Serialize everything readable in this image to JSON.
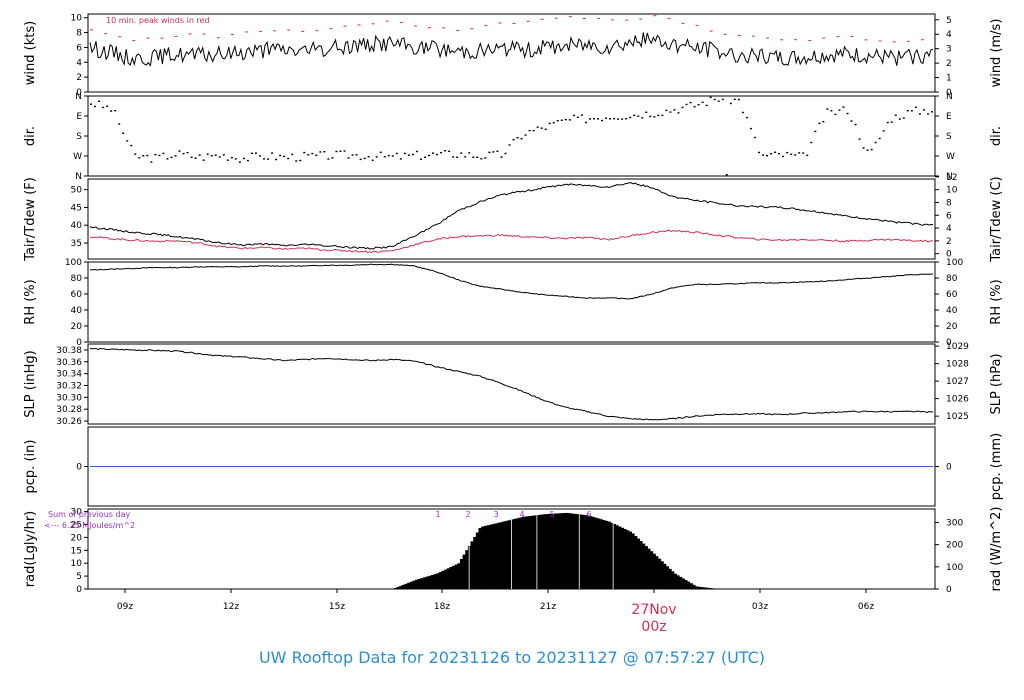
{
  "chart_data": {
    "type": "line",
    "x_ticks": [
      "09z",
      "12z",
      "15z",
      "18z",
      "21z",
      "03z",
      "06z"
    ],
    "day_label": "27Nov",
    "day_sub": "00z",
    "panels": [
      {
        "id": "wind",
        "left_label": "wind (kts)",
        "right_label": "wind (m/s)",
        "left_ticks": [
          "0",
          "2",
          "4",
          "6",
          "8",
          "10"
        ],
        "right_ticks": [
          "0",
          "1",
          "2",
          "3",
          "4",
          "5"
        ],
        "annotation": "10 min. peak winds in red",
        "series": [
          {
            "name": "",
            "color": "#000000",
            "style": "line",
            "values": [
              6.0,
              5.3,
              4.5,
              4.7,
              5.1,
              4.9,
              5.0,
              5.4,
              5.6,
              5.7,
              5.5,
              5.8,
              6.2,
              6.5,
              6.6,
              6.0,
              5.8,
              5.5,
              5.6,
              5.8,
              5.7,
              5.9,
              6.3,
              6.4,
              6.2,
              6.8,
              7.0,
              6.5,
              6.0,
              5.5,
              5.0,
              4.8,
              4.5,
              4.6,
              4.9,
              5.0,
              4.8,
              4.5,
              4.7,
              5.0
            ]
          },
          {
            "name": "",
            "color": "#d03050",
            "style": "dash",
            "values": [
              8.5,
              7.5,
              7.0,
              7.3,
              7.6,
              7.8,
              7.4,
              7.9,
              8.2,
              8.4,
              8.0,
              8.6,
              9.0,
              9.3,
              9.6,
              9.0,
              8.6,
              8.4,
              8.8,
              9.2,
              9.4,
              9.8,
              10.1,
              10.0,
              9.6,
              9.8,
              10.2,
              9.6,
              8.9,
              8.0,
              7.6,
              7.3,
              6.9,
              7.0,
              7.2,
              7.4,
              7.0,
              6.8,
              6.9,
              7.0
            ]
          }
        ],
        "ylim": [
          0,
          10.5
        ]
      },
      {
        "id": "dir",
        "left_label": "dir.",
        "right_label": "dir.",
        "left_ticks": [
          "N",
          "E",
          "S",
          "W",
          "N"
        ],
        "right_ticks": [
          "N",
          "E",
          "S",
          "W",
          "N"
        ],
        "series": [
          {
            "name": "",
            "color": "#000000",
            "style": "dots",
            "values": [
              330,
              300,
              90,
              80,
              100,
              85,
              95,
              80,
              90,
              85,
              88,
              92,
              95,
              90,
              85,
              92,
              96,
              100,
              90,
              95,
              190,
              220,
              250,
              260,
              270,
              275,
              285,
              300,
              320,
              350,
              340,
              90,
              95,
              85,
              280,
              300,
              90,
              260,
              290,
              300
            ]
          }
        ],
        "ylim": [
          0,
          360
        ]
      },
      {
        "id": "temp",
        "left_label": "Tair/Tdew (F)",
        "right_label": "Tair/Tdew (C)",
        "left_ticks": [
          "35",
          "40",
          "45",
          "50"
        ],
        "right_ticks": [
          "0",
          "2",
          "4",
          "6",
          "8",
          "10",
          "12"
        ],
        "series": [
          {
            "name": "",
            "color": "#000000",
            "style": "line",
            "values": [
              39.5,
              38.8,
              38.0,
              37.5,
              36.8,
              36.0,
              35.0,
              34.5,
              34.7,
              34.3,
              34.6,
              34.2,
              33.8,
              33.5,
              34.0,
              37.0,
              40.0,
              44.0,
              46.5,
              48.5,
              49.5,
              50.5,
              51.5,
              51.2,
              50.8,
              52.0,
              50.5,
              48.0,
              47.0,
              46.2,
              45.5,
              45.2,
              45.0,
              44.3,
              43.5,
              42.5,
              41.8,
              41.0,
              40.5,
              40.0
            ]
          },
          {
            "name": "",
            "color": "#d03050",
            "style": "line",
            "values": [
              36.8,
              36.2,
              35.8,
              35.5,
              35.6,
              35.0,
              34.0,
              33.5,
              33.7,
              33.3,
              33.5,
              33.0,
              32.8,
              32.5,
              32.8,
              34.5,
              36.0,
              36.8,
              37.0,
              37.2,
              36.8,
              36.5,
              36.3,
              36.5,
              36.0,
              37.0,
              38.0,
              38.5,
              38.0,
              37.2,
              36.5,
              36.0,
              35.8,
              36.0,
              35.8,
              35.5,
              35.8,
              36.0,
              35.7,
              35.5
            ]
          }
        ],
        "ylim": [
          30.5,
          53
        ]
      },
      {
        "id": "rh",
        "left_label": "RH (%)",
        "right_label": "RH (%)",
        "left_ticks": [
          "0",
          "20",
          "40",
          "60",
          "80",
          "100"
        ],
        "right_ticks": [
          "0",
          "20",
          "40",
          "60",
          "80",
          "100"
        ],
        "series": [
          {
            "name": "",
            "color": "#000000",
            "style": "line",
            "values": [
              90,
              91,
              92,
              93,
              93,
              94,
              94,
              94,
              95,
              95,
              95,
              96,
              96,
              97,
              97,
              95,
              88,
              78,
              70,
              66,
              62,
              59,
              57,
              55,
              55,
              54,
              60,
              68,
              72,
              72,
              73,
              74,
              74,
              75,
              76,
              78,
              80,
              82,
              84,
              85
            ]
          }
        ],
        "ylim": [
          0,
          100
        ]
      },
      {
        "id": "slp",
        "left_label": "SLP (inHg)",
        "right_label": "SLP (hPa)",
        "left_ticks": [
          "30.26",
          "30.28",
          "30.30",
          "30.32",
          "30.34",
          "30.36",
          "30.38"
        ],
        "right_ticks": [
          "1025",
          "1026",
          "1027",
          "1028",
          "1029"
        ],
        "series": [
          {
            "name": "",
            "color": "#000000",
            "style": "line",
            "values": [
              30.382,
              30.381,
              30.38,
              30.379,
              30.378,
              30.374,
              30.37,
              30.368,
              30.365,
              30.362,
              30.364,
              30.366,
              30.364,
              30.362,
              30.364,
              30.361,
              30.352,
              30.344,
              30.336,
              30.324,
              30.31,
              30.295,
              30.283,
              30.276,
              30.268,
              30.264,
              30.262,
              30.264,
              30.268,
              30.271,
              30.272,
              30.272,
              30.271,
              30.273,
              30.274,
              30.276,
              30.276,
              30.276,
              30.276,
              30.275
            ]
          }
        ],
        "ylim": [
          30.255,
          30.39
        ]
      },
      {
        "id": "pcp",
        "left_label": "pcp. (in)",
        "right_label": "pcp. (mm)",
        "left_ticks": [
          "0"
        ],
        "right_ticks": [
          "0"
        ],
        "series": [
          {
            "name": "",
            "color": "#3060c0",
            "style": "line",
            "values": [
              0,
              0
            ]
          }
        ],
        "ylim": [
          -1,
          1
        ]
      },
      {
        "id": "rad",
        "left_label": "rad(Lgly/hr)",
        "right_label": "rad (W/m^2)",
        "left_ticks": [
          "0",
          "5",
          "10",
          "15",
          "20",
          "25",
          "30"
        ],
        "right_ticks": [
          "0",
          "100",
          "200",
          "300"
        ],
        "hour_marks": [
          "1",
          "2",
          "3",
          "4",
          "5",
          "6"
        ],
        "note_line1": "Sum of previous day",
        "note_line2": "<--- 6.25 MJoules/m^2",
        "series": [
          {
            "name": "",
            "color": "#000000",
            "style": "bars",
            "values": [
              0,
              0,
              0,
              0,
              0,
              0,
              0,
              0,
              0,
              0,
              0,
              0,
              0,
              0,
              0.2,
              3.5,
              6.0,
              10.0,
              24.0,
              26.0,
              28.0,
              29.0,
              29.5,
              28.5,
              26.0,
              22.0,
              14.0,
              6.0,
              1.0,
              0,
              0,
              0,
              0,
              0,
              0,
              0,
              0,
              0,
              0,
              0
            ]
          }
        ],
        "ylim": [
          0,
          31
        ]
      }
    ]
  },
  "footer": {
    "prefix": "UW Rooftop Data for 20231126",
    "to_word": "to",
    "suffix": "20231127 @ 07:57:27",
    "zone": "(UTC)"
  },
  "colors": {
    "footer": "#2b8fd6",
    "day_label": "#d03050",
    "peak": "#d03050",
    "note": "#9932cc",
    "pcp_line": "#3060c0"
  }
}
